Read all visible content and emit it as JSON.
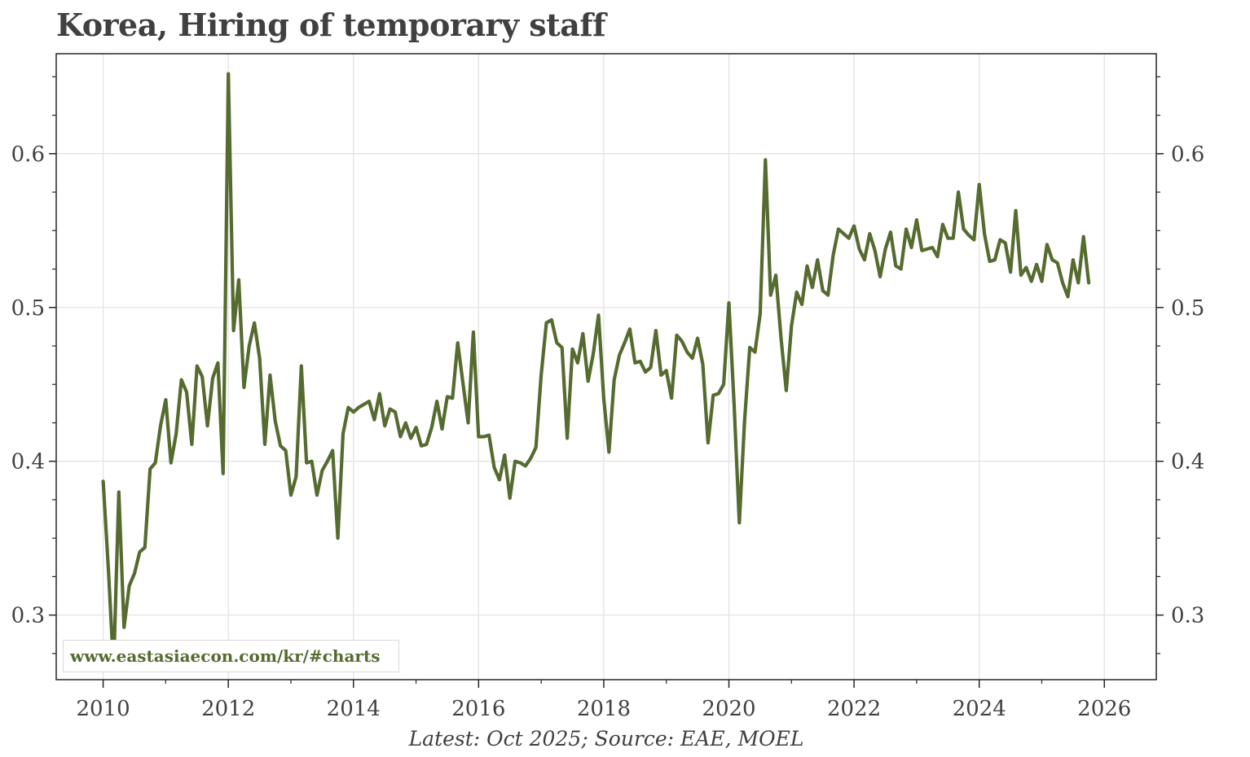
{
  "chart_data": {
    "type": "line",
    "title": "Korea, Hiring of temporary staff",
    "xlabel": "",
    "ylabel": "",
    "xlim": [
      2009.25,
      2026.83
    ],
    "ylim": [
      0.258,
      0.665
    ],
    "x_ticks": [
      2010,
      2012,
      2014,
      2016,
      2018,
      2020,
      2022,
      2024,
      2026
    ],
    "y_ticks": [
      0.3,
      0.4,
      0.5,
      0.6
    ],
    "grid": true,
    "legend": "none",
    "color": "#556b2f",
    "source": "Latest: Oct 2025; Source: EAE, MOEL",
    "watermark": "www.eastasiaecon.com/kr/#charts",
    "series": [
      {
        "x_start": "2010-01",
        "frequency": "monthly",
        "values": [
          0.387,
          0.33,
          0.265,
          0.38,
          0.292,
          0.319,
          0.327,
          0.341,
          0.344,
          0.395,
          0.399,
          0.423,
          0.44,
          0.399,
          0.418,
          0.453,
          0.445,
          0.411,
          0.462,
          0.455,
          0.423,
          0.454,
          0.464,
          0.392,
          0.652,
          0.485,
          0.518,
          0.448,
          0.475,
          0.49,
          0.467,
          0.411,
          0.456,
          0.426,
          0.41,
          0.407,
          0.378,
          0.39,
          0.462,
          0.399,
          0.4,
          0.378,
          0.394,
          0.4,
          0.407,
          0.35,
          0.418,
          0.435,
          0.432,
          0.435,
          0.437,
          0.439,
          0.427,
          0.444,
          0.423,
          0.434,
          0.432,
          0.416,
          0.425,
          0.415,
          0.422,
          0.41,
          0.411,
          0.422,
          0.439,
          0.421,
          0.442,
          0.441,
          0.477,
          0.451,
          0.425,
          0.484,
          0.416,
          0.416,
          0.417,
          0.396,
          0.388,
          0.404,
          0.376,
          0.4,
          0.399,
          0.397,
          0.402,
          0.409,
          0.456,
          0.49,
          0.492,
          0.477,
          0.474,
          0.415,
          0.473,
          0.464,
          0.483,
          0.452,
          0.47,
          0.495,
          0.441,
          0.406,
          0.453,
          0.469,
          0.477,
          0.486,
          0.464,
          0.465,
          0.458,
          0.461,
          0.485,
          0.456,
          0.459,
          0.441,
          0.482,
          0.478,
          0.471,
          0.467,
          0.48,
          0.463,
          0.412,
          0.443,
          0.444,
          0.45,
          0.503,
          0.437,
          0.36,
          0.426,
          0.474,
          0.471,
          0.496,
          0.596,
          0.508,
          0.521,
          0.48,
          0.446,
          0.488,
          0.51,
          0.502,
          0.527,
          0.513,
          0.531,
          0.511,
          0.508,
          0.534,
          0.551,
          0.548,
          0.545,
          0.553,
          0.538,
          0.531,
          0.548,
          0.537,
          0.52,
          0.538,
          0.549,
          0.527,
          0.525,
          0.551,
          0.539,
          0.557,
          0.537,
          0.538,
          0.539,
          0.533,
          0.554,
          0.545,
          0.545,
          0.575,
          0.551,
          0.547,
          0.544,
          0.58,
          0.548,
          0.53,
          0.531,
          0.544,
          0.542,
          0.523,
          0.563,
          0.521,
          0.526,
          0.517,
          0.528,
          0.517,
          0.541,
          0.531,
          0.529,
          0.516,
          0.507,
          0.531,
          0.516,
          0.546,
          0.516
        ]
      }
    ]
  }
}
